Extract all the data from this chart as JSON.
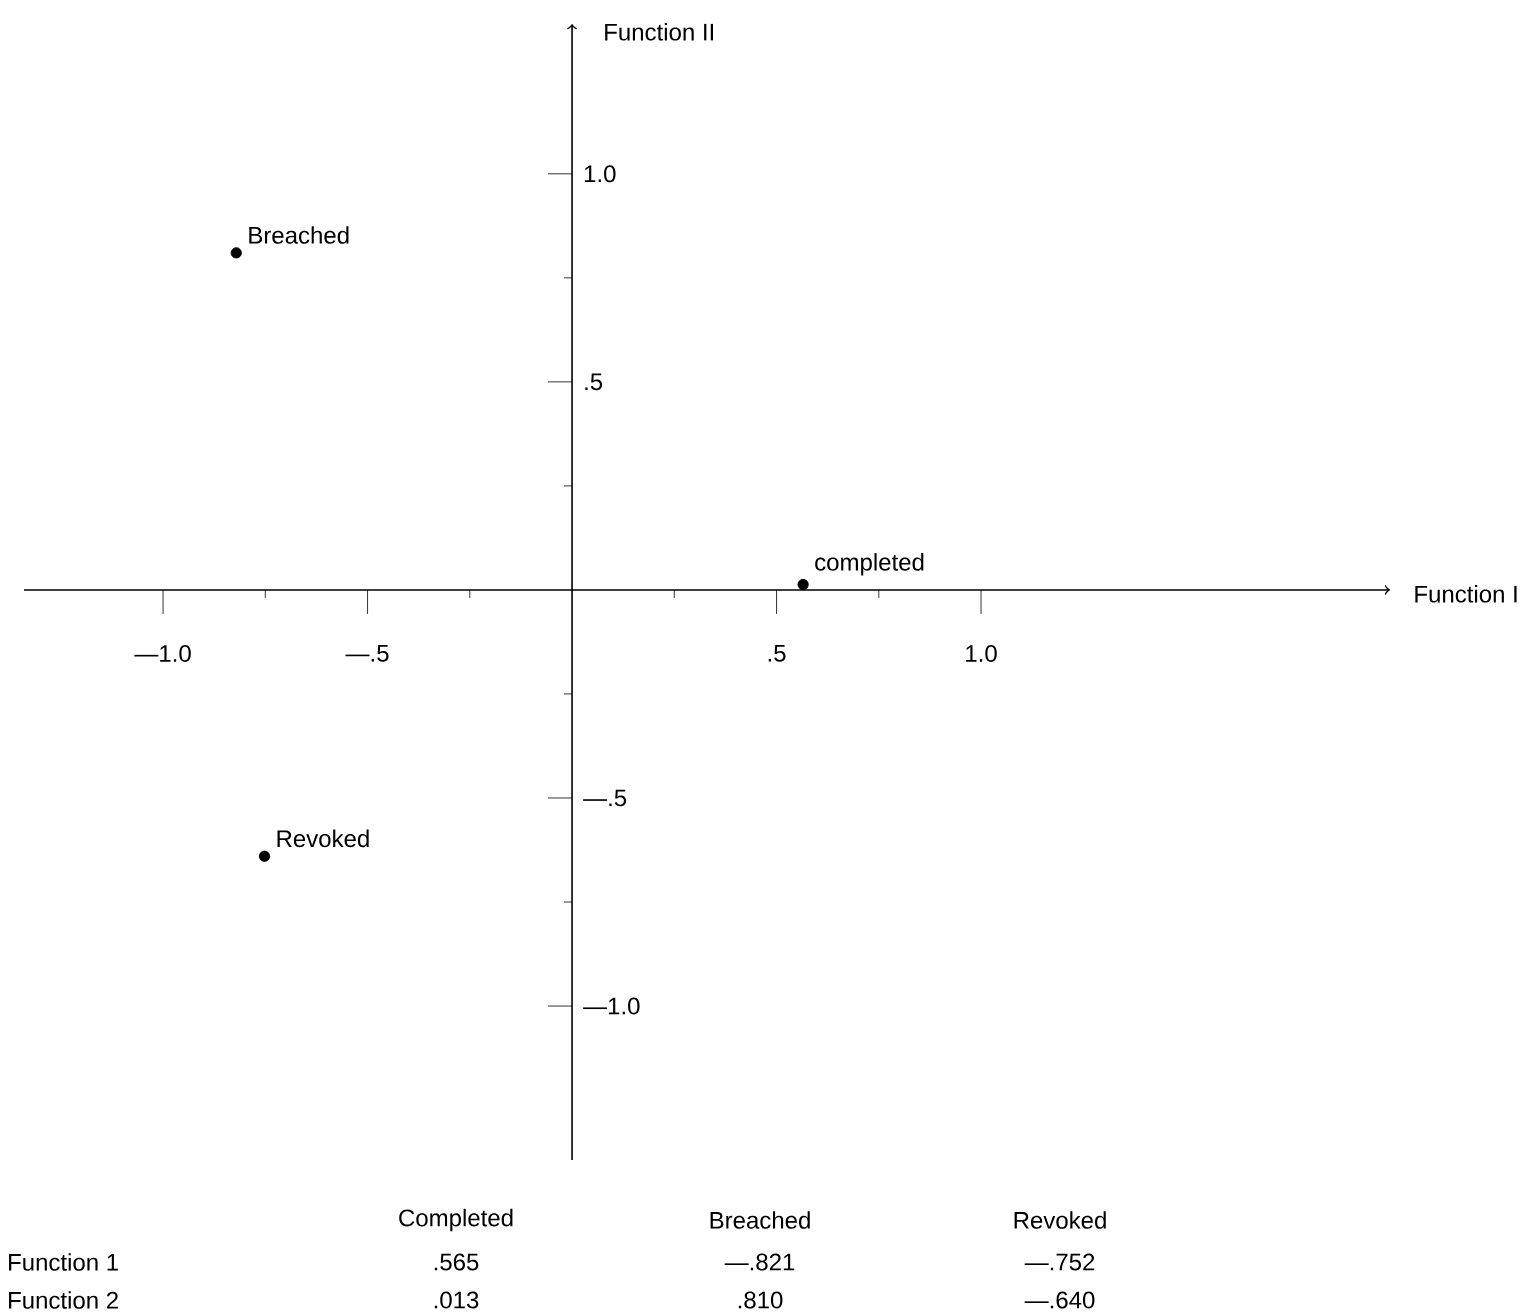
{
  "chart_data": {
    "type": "scatter",
    "xlabel": "Function I",
    "ylabel": "Function II",
    "x": [
      0.565,
      -0.821,
      -0.752
    ],
    "series": [
      {
        "color": "#000000",
        "values": [
          0.013,
          0.81,
          -0.64
        ]
      }
    ],
    "xlim": [
      -1.34,
      2.0
    ],
    "ylim": [
      -1.37,
      1.36
    ],
    "xticks": [
      {
        "value": -1.0,
        "label": "—1.0"
      },
      {
        "value": -0.75,
        "label": null
      },
      {
        "value": -0.5,
        "label": "—.5"
      },
      {
        "value": -0.25,
        "label": null
      },
      {
        "value": 0.25,
        "label": null
      },
      {
        "value": 0.5,
        "label": ".5"
      },
      {
        "value": 0.75,
        "label": null
      },
      {
        "value": 1.0,
        "label": "1.0"
      }
    ],
    "yticks": [
      {
        "value": -1.0,
        "label": "—1.0"
      },
      {
        "value": -0.75,
        "label": null
      },
      {
        "value": -0.5,
        "label": "—.5"
      },
      {
        "value": -0.25,
        "label": null
      },
      {
        "value": 0.25,
        "label": null
      },
      {
        "value": 0.5,
        "label": ".5"
      },
      {
        "value": 0.75,
        "label": null
      },
      {
        "value": 1.0,
        "label": "1.0"
      }
    ],
    "annotations": [
      {
        "text": "completed",
        "x": 0.565,
        "y": 0.013
      },
      {
        "text": "Breached",
        "x": -0.821,
        "y": 0.81
      },
      {
        "text": "Revoked",
        "x": -0.752,
        "y": -0.64
      },
      "Completed",
      "Breached",
      "Revoked",
      "Function 1",
      ".565",
      "—.821",
      "—.752",
      "Function 2",
      ".013",
      ".810",
      "—.640"
    ]
  }
}
